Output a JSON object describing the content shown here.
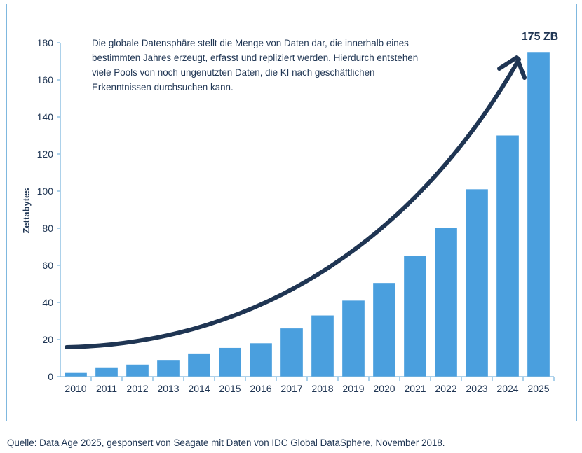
{
  "annotation": "Die globale Datensphäre stellt die Menge von Daten dar, die innerhalb eines bestimmten Jahres erzeugt, erfasst und repliziert werden. Hierdurch entstehen viele Pools von noch ungenutzten Daten, die KI nach geschäftlichen Erkenntnissen durchsuchen kann.",
  "callout": "175 ZB",
  "source": "Quelle: Data Age 2025, gesponsert von Seagate mit Daten von IDC Global DataSphere, November 2018.",
  "colors": {
    "bar": "#4a9fde",
    "arrow": "#1f3553",
    "text": "#1f3553",
    "frame": "#7fb8df"
  },
  "chart_data": {
    "type": "bar",
    "categories": [
      "2010",
      "2011",
      "2012",
      "2013",
      "2014",
      "2015",
      "2016",
      "2017",
      "2018",
      "2019",
      "2020",
      "2021",
      "2022",
      "2023",
      "2024",
      "2025"
    ],
    "values": [
      2,
      5,
      6.5,
      9,
      12.5,
      15.5,
      18,
      26,
      33,
      41,
      50.5,
      65,
      80,
      101,
      130,
      175
    ],
    "ylabel": "Zettabytes",
    "xlabel": "",
    "ylim": [
      0,
      180
    ],
    "yticks": [
      0,
      20,
      40,
      60,
      80,
      100,
      120,
      140,
      160,
      180
    ],
    "grid": false,
    "overlay": "curved trend arrow pointing to 2025 bar"
  }
}
